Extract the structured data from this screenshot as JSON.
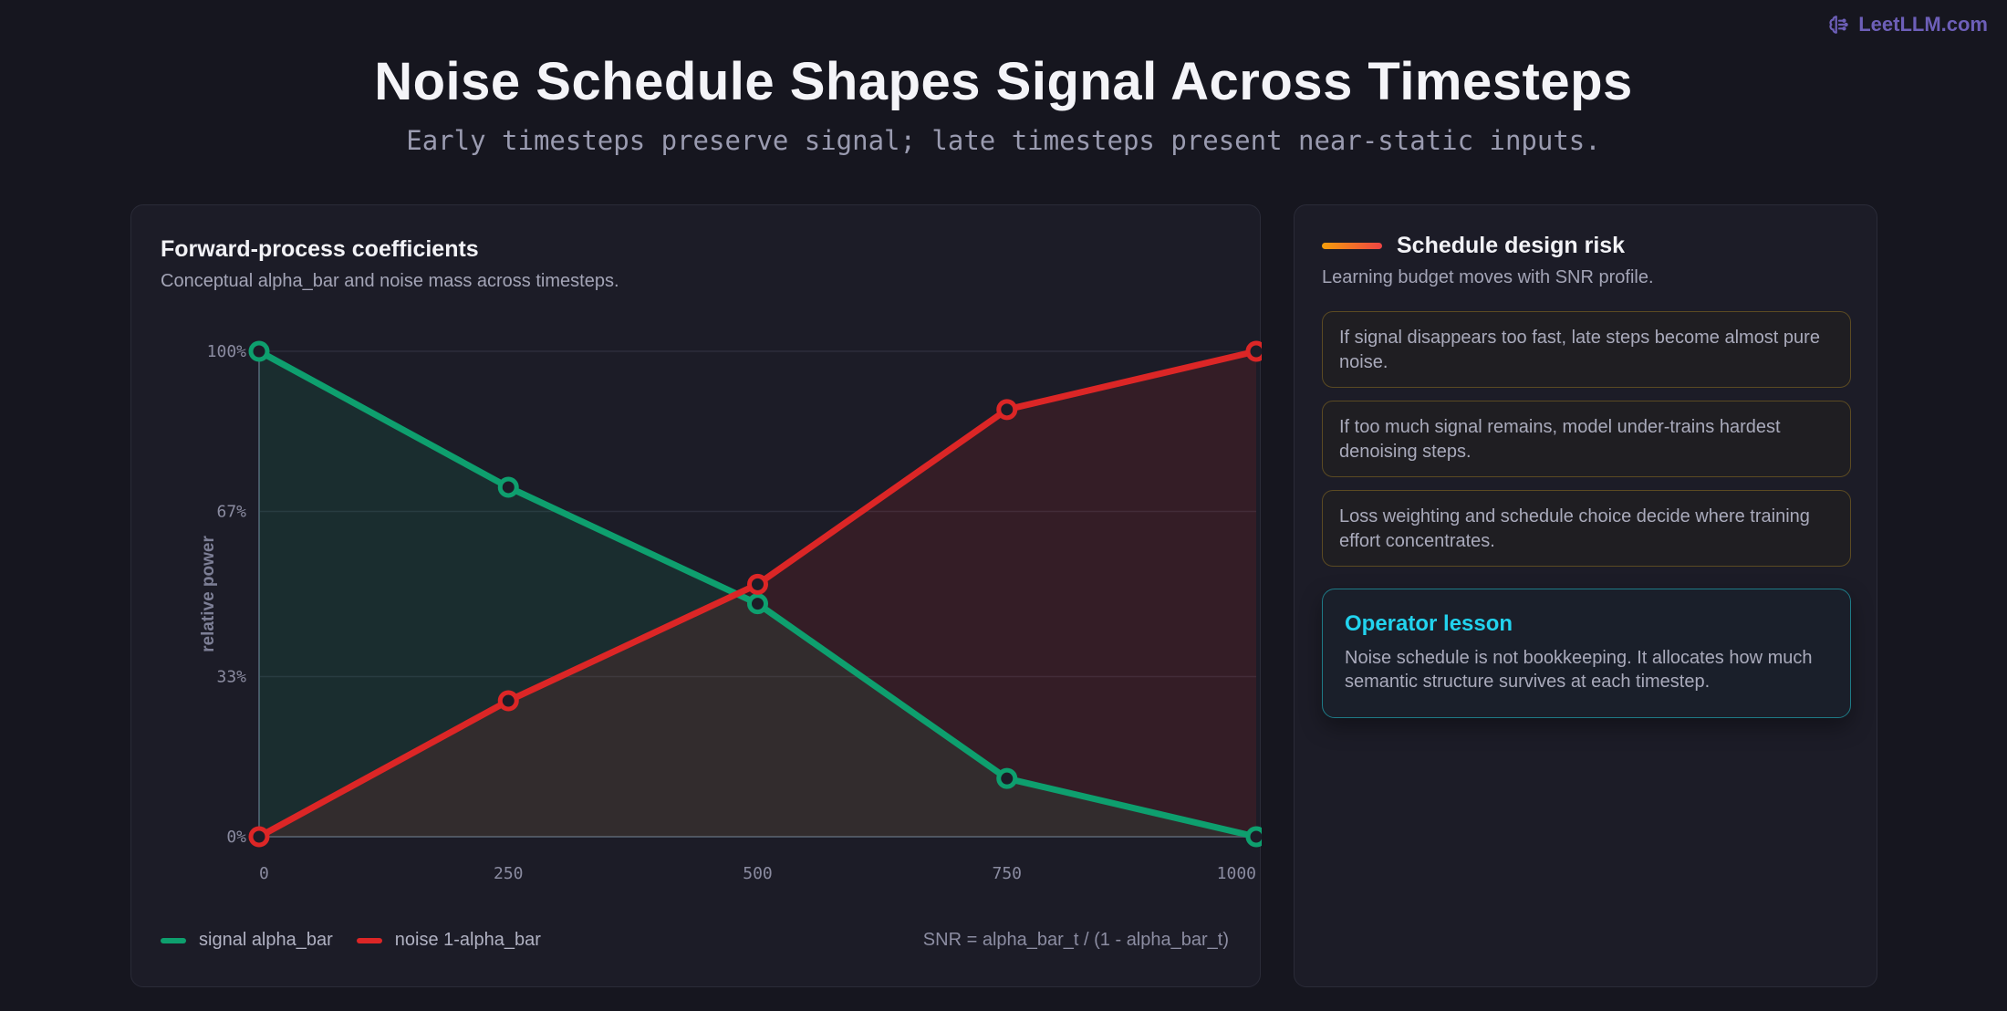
{
  "brand": {
    "name": "LeetLLM.com",
    "icon": "brain-icon"
  },
  "header": {
    "title": "Noise Schedule Shapes Signal Across Timesteps",
    "subtitle": "Early timesteps preserve signal; late timesteps present near-static inputs."
  },
  "chart_card": {
    "title": "Forward-process coefficients",
    "subtitle": "Conceptual alpha_bar and noise mass across timesteps.",
    "formula": "SNR = alpha_bar_t / (1 - alpha_bar_t)"
  },
  "chart_data": {
    "type": "area",
    "x": [
      0,
      250,
      500,
      750,
      1000
    ],
    "x_tick_labels": [
      "0",
      "250",
      "500",
      "750",
      "1000"
    ],
    "ylabel": "relative power",
    "y_tick_labels": [
      "100%",
      "67%",
      "33%",
      "0%"
    ],
    "y_ticks": [
      100,
      67,
      33,
      0
    ],
    "ylim": [
      0,
      100
    ],
    "grid": true,
    "legend_position": "bottom-left",
    "series": [
      {
        "name": "signal alpha_bar",
        "color": "#0e9f6e",
        "values": [
          100,
          72,
          48,
          12,
          0
        ]
      },
      {
        "name": "noise 1-alpha_bar",
        "color": "#dc2626",
        "values": [
          0,
          28,
          52,
          88,
          100
        ]
      }
    ]
  },
  "side_card": {
    "title": "Schedule design risk",
    "subtitle": "Learning budget moves with SNR profile.",
    "risks": [
      "If signal disappears too fast, late steps become almost pure noise.",
      "If too much signal remains, model under-trains hardest denoising steps.",
      "Loss weighting and schedule choice decide where training effort concentrates."
    ],
    "lesson": {
      "title": "Operator lesson",
      "text": "Noise schedule is not bookkeeping. It allocates how much semantic structure survives at each timestep."
    }
  }
}
